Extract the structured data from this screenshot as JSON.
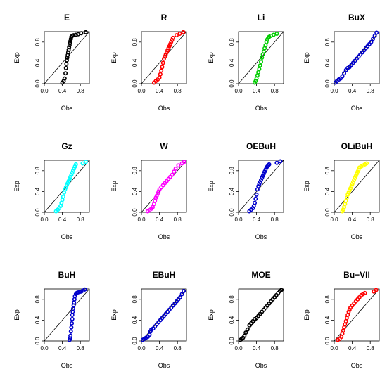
{
  "chart_data": [
    {
      "type": "scatter",
      "title": "E",
      "xlabel": "Obs",
      "ylabel": "Exp",
      "xlim": [
        0,
        1
      ],
      "ylim": [
        0,
        1
      ],
      "xticks": [
        "0.0",
        "0.4",
        "0.8"
      ],
      "yticks": [
        "0.0",
        "0.4",
        "0.8"
      ],
      "color": "#000000",
      "reference_line": "y = x",
      "x": [
        0.4,
        0.43,
        0.45,
        0.47,
        0.48,
        0.49,
        0.5,
        0.51,
        0.52,
        0.53,
        0.54,
        0.55,
        0.56,
        0.57,
        0.58,
        0.59,
        0.6,
        0.62,
        0.65,
        0.7,
        0.75,
        0.82,
        0.92
      ],
      "y": [
        0.02,
        0.05,
        0.1,
        0.2,
        0.3,
        0.38,
        0.45,
        0.5,
        0.55,
        0.6,
        0.65,
        0.7,
        0.74,
        0.78,
        0.82,
        0.86,
        0.9,
        0.92,
        0.93,
        0.94,
        0.95,
        0.97,
        0.99
      ]
    },
    {
      "type": "scatter",
      "title": "R",
      "xlabel": "Obs",
      "ylabel": "Exp",
      "xlim": [
        0,
        1
      ],
      "ylim": [
        0,
        1
      ],
      "xticks": [
        "0.0",
        "0.4",
        "0.8"
      ],
      "yticks": [
        "0.0",
        "0.4",
        "0.8"
      ],
      "color": "#ff0000",
      "reference_line": "y = x",
      "x": [
        0.28,
        0.32,
        0.36,
        0.4,
        0.42,
        0.44,
        0.46,
        0.48,
        0.5,
        0.52,
        0.54,
        0.56,
        0.58,
        0.6,
        0.62,
        0.64,
        0.66,
        0.68,
        0.7,
        0.78,
        0.85,
        0.93
      ],
      "y": [
        0.02,
        0.05,
        0.08,
        0.12,
        0.18,
        0.25,
        0.32,
        0.4,
        0.48,
        0.52,
        0.56,
        0.6,
        0.64,
        0.68,
        0.72,
        0.76,
        0.8,
        0.84,
        0.88,
        0.93,
        0.96,
        0.99
      ]
    },
    {
      "type": "scatter",
      "title": "Li",
      "xlabel": "Obs",
      "ylabel": "Exp",
      "xlim": [
        0,
        1
      ],
      "ylim": [
        0,
        1
      ],
      "xticks": [
        "0.0",
        "0.4",
        "0.8"
      ],
      "yticks": [
        "0.0",
        "0.4",
        "0.8"
      ],
      "color": "#00cc00",
      "reference_line": "y = x",
      "x": [
        0.36,
        0.38,
        0.4,
        0.42,
        0.44,
        0.46,
        0.48,
        0.5,
        0.52,
        0.54,
        0.56,
        0.58,
        0.6,
        0.62,
        0.64,
        0.66,
        0.68,
        0.72,
        0.78,
        0.85
      ],
      "y": [
        0.02,
        0.05,
        0.1,
        0.16,
        0.22,
        0.28,
        0.35,
        0.42,
        0.5,
        0.56,
        0.62,
        0.68,
        0.74,
        0.8,
        0.85,
        0.88,
        0.9,
        0.92,
        0.94,
        0.96
      ]
    },
    {
      "type": "scatter",
      "title": "BuX",
      "xlabel": "Obs",
      "ylabel": "Exp",
      "xlim": [
        0,
        1
      ],
      "ylim": [
        0,
        1
      ],
      "xticks": [
        "0.0",
        "0.4",
        "0.8"
      ],
      "yticks": [
        "0.0",
        "0.4",
        "0.8"
      ],
      "color": "#0000cc",
      "reference_line": "y = x",
      "x": [
        0.03,
        0.06,
        0.1,
        0.14,
        0.18,
        0.22,
        0.26,
        0.3,
        0.34,
        0.38,
        0.42,
        0.46,
        0.5,
        0.54,
        0.58,
        0.62,
        0.66,
        0.7,
        0.74,
        0.78,
        0.82,
        0.86,
        0.9,
        0.94
      ],
      "y": [
        0.02,
        0.05,
        0.08,
        0.1,
        0.14,
        0.2,
        0.26,
        0.3,
        0.32,
        0.36,
        0.4,
        0.44,
        0.48,
        0.52,
        0.56,
        0.6,
        0.64,
        0.68,
        0.72,
        0.76,
        0.8,
        0.86,
        0.92,
        0.98
      ]
    },
    {
      "type": "scatter",
      "title": "Gz",
      "xlabel": "Obs",
      "ylabel": "Exp",
      "xlim": [
        0,
        1
      ],
      "ylim": [
        0,
        1
      ],
      "xticks": [
        "0.0",
        "0.4",
        "0.8"
      ],
      "yticks": [
        "0.0",
        "0.4",
        "0.8"
      ],
      "color": "#00ffff",
      "reference_line": "y = x",
      "x": [
        0.26,
        0.3,
        0.33,
        0.36,
        0.38,
        0.4,
        0.42,
        0.44,
        0.46,
        0.48,
        0.5,
        0.52,
        0.54,
        0.56,
        0.58,
        0.6,
        0.62,
        0.64,
        0.66,
        0.68,
        0.7,
        0.85,
        0.92
      ],
      "y": [
        0.02,
        0.05,
        0.08,
        0.12,
        0.18,
        0.24,
        0.3,
        0.38,
        0.44,
        0.48,
        0.52,
        0.56,
        0.6,
        0.64,
        0.68,
        0.72,
        0.76,
        0.8,
        0.84,
        0.88,
        0.92,
        0.94,
        0.97
      ]
    },
    {
      "type": "scatter",
      "title": "W",
      "xlabel": "Obs",
      "ylabel": "Exp",
      "xlim": [
        0,
        1
      ],
      "ylim": [
        0,
        1
      ],
      "xticks": [
        "0.0",
        "0.4",
        "0.8"
      ],
      "yticks": [
        "0.0",
        "0.4",
        "0.8"
      ],
      "color": "#ff00ff",
      "reference_line": "y = x",
      "x": [
        0.14,
        0.18,
        0.22,
        0.25,
        0.28,
        0.3,
        0.32,
        0.34,
        0.36,
        0.38,
        0.4,
        0.44,
        0.48,
        0.52,
        0.56,
        0.6,
        0.64,
        0.68,
        0.72,
        0.76,
        0.82,
        0.9,
        0.95
      ],
      "y": [
        0.02,
        0.04,
        0.07,
        0.1,
        0.16,
        0.22,
        0.28,
        0.32,
        0.36,
        0.4,
        0.44,
        0.48,
        0.52,
        0.56,
        0.6,
        0.64,
        0.68,
        0.72,
        0.78,
        0.84,
        0.9,
        0.94,
        0.97
      ]
    },
    {
      "type": "scatter",
      "title": "OEBuH",
      "xlabel": "Obs",
      "ylabel": "Exp",
      "xlim": [
        0,
        1
      ],
      "ylim": [
        0,
        1
      ],
      "xticks": [
        "0.0",
        "0.4",
        "0.8"
      ],
      "yticks": [
        "0.0",
        "0.4",
        "0.8"
      ],
      "color": "#0000cc",
      "reference_line": "y = x",
      "x": [
        0.24,
        0.28,
        0.32,
        0.34,
        0.36,
        0.38,
        0.4,
        0.42,
        0.44,
        0.46,
        0.48,
        0.5,
        0.52,
        0.54,
        0.56,
        0.58,
        0.6,
        0.62,
        0.64,
        0.66,
        0.68,
        0.85,
        0.93
      ],
      "y": [
        0.02,
        0.05,
        0.08,
        0.12,
        0.18,
        0.26,
        0.34,
        0.44,
        0.5,
        0.54,
        0.58,
        0.62,
        0.66,
        0.7,
        0.74,
        0.78,
        0.82,
        0.86,
        0.88,
        0.9,
        0.92,
        0.95,
        0.98
      ]
    },
    {
      "type": "scatter",
      "title": "OLiBuH",
      "xlabel": "Obs",
      "ylabel": "Exp",
      "xlim": [
        0,
        1
      ],
      "ylim": [
        0,
        1
      ],
      "xticks": [
        "0.0",
        "0.4",
        "0.8"
      ],
      "yticks": [
        "0.0",
        "0.4",
        "0.8"
      ],
      "color": "#ffff00",
      "reference_line": "y = x",
      "x": [
        0.18,
        0.2,
        0.22,
        0.24,
        0.26,
        0.28,
        0.3,
        0.32,
        0.34,
        0.36,
        0.38,
        0.4,
        0.42,
        0.44,
        0.46,
        0.48,
        0.5,
        0.52,
        0.54,
        0.56,
        0.6,
        0.64,
        0.68,
        0.72
      ],
      "y": [
        0.02,
        0.05,
        0.1,
        0.16,
        0.22,
        0.28,
        0.34,
        0.38,
        0.42,
        0.46,
        0.5,
        0.54,
        0.58,
        0.62,
        0.66,
        0.7,
        0.74,
        0.78,
        0.82,
        0.86,
        0.88,
        0.9,
        0.92,
        0.94
      ]
    },
    {
      "type": "scatter",
      "title": "BuH",
      "xlabel": "Obs",
      "ylabel": "Exp",
      "xlim": [
        0,
        1
      ],
      "ylim": [
        0,
        1
      ],
      "xticks": [
        "0.0",
        "0.4",
        "0.8"
      ],
      "yticks": [
        "0.0",
        "0.4",
        "0.8"
      ],
      "color": "#0000cc",
      "reference_line": "y = x",
      "x": [
        0.56,
        0.57,
        0.58,
        0.59,
        0.6,
        0.61,
        0.62,
        0.62,
        0.63,
        0.64,
        0.65,
        0.66,
        0.67,
        0.68,
        0.7,
        0.72,
        0.74,
        0.78,
        0.82,
        0.86,
        0.9
      ],
      "y": [
        0.02,
        0.05,
        0.1,
        0.18,
        0.26,
        0.34,
        0.42,
        0.5,
        0.56,
        0.62,
        0.68,
        0.74,
        0.8,
        0.86,
        0.9,
        0.92,
        0.93,
        0.94,
        0.95,
        0.97,
        0.99
      ]
    },
    {
      "type": "scatter",
      "title": "EBuH",
      "xlabel": "Obs",
      "ylabel": "Exp",
      "xlim": [
        0,
        1
      ],
      "ylim": [
        0,
        1
      ],
      "xticks": [
        "0.0",
        "0.4",
        "0.8"
      ],
      "yticks": [
        "0.0",
        "0.4",
        "0.8"
      ],
      "color": "#0000cc",
      "reference_line": "y = x",
      "x": [
        0.03,
        0.06,
        0.1,
        0.14,
        0.18,
        0.2,
        0.22,
        0.26,
        0.3,
        0.34,
        0.38,
        0.42,
        0.46,
        0.5,
        0.54,
        0.58,
        0.62,
        0.66,
        0.7,
        0.74,
        0.78,
        0.82,
        0.86,
        0.9,
        0.94
      ],
      "y": [
        0.02,
        0.04,
        0.06,
        0.08,
        0.12,
        0.18,
        0.22,
        0.24,
        0.28,
        0.32,
        0.36,
        0.4,
        0.44,
        0.48,
        0.52,
        0.56,
        0.6,
        0.64,
        0.68,
        0.72,
        0.76,
        0.8,
        0.84,
        0.9,
        0.96
      ]
    },
    {
      "type": "scatter",
      "title": "MOE",
      "xlabel": "Obs",
      "ylabel": "Exp",
      "xlim": [
        0,
        1
      ],
      "ylim": [
        0,
        1
      ],
      "xticks": [
        "0.0",
        "0.4",
        "0.8"
      ],
      "yticks": [
        "0.0",
        "0.4",
        "0.8"
      ],
      "color": "#000000",
      "reference_line": "y = x",
      "x": [
        0.04,
        0.07,
        0.1,
        0.13,
        0.16,
        0.2,
        0.24,
        0.28,
        0.32,
        0.36,
        0.4,
        0.44,
        0.48,
        0.52,
        0.56,
        0.6,
        0.64,
        0.68,
        0.72,
        0.76,
        0.8,
        0.84,
        0.88,
        0.92,
        0.95
      ],
      "y": [
        0.02,
        0.04,
        0.06,
        0.1,
        0.16,
        0.22,
        0.3,
        0.34,
        0.38,
        0.42,
        0.44,
        0.48,
        0.52,
        0.56,
        0.6,
        0.64,
        0.68,
        0.72,
        0.76,
        0.8,
        0.84,
        0.88,
        0.92,
        0.96,
        0.98
      ]
    },
    {
      "type": "scatter",
      "title": "Bu−VII",
      "xlabel": "Obs",
      "ylabel": "Exp",
      "xlim": [
        0,
        1
      ],
      "ylim": [
        0,
        1
      ],
      "xticks": [
        "0.0",
        "0.4",
        "0.8"
      ],
      "yticks": [
        "0.0",
        "0.4",
        "0.8"
      ],
      "color": "#ff0000",
      "reference_line": "y = x",
      "x": [
        0.08,
        0.12,
        0.16,
        0.18,
        0.2,
        0.22,
        0.24,
        0.26,
        0.28,
        0.3,
        0.32,
        0.34,
        0.36,
        0.4,
        0.44,
        0.48,
        0.52,
        0.56,
        0.6,
        0.64,
        0.68,
        0.88,
        0.93
      ],
      "y": [
        0.02,
        0.04,
        0.08,
        0.14,
        0.2,
        0.26,
        0.32,
        0.38,
        0.44,
        0.5,
        0.56,
        0.6,
        0.64,
        0.68,
        0.72,
        0.76,
        0.8,
        0.84,
        0.88,
        0.9,
        0.92,
        0.95,
        0.98
      ]
    }
  ]
}
